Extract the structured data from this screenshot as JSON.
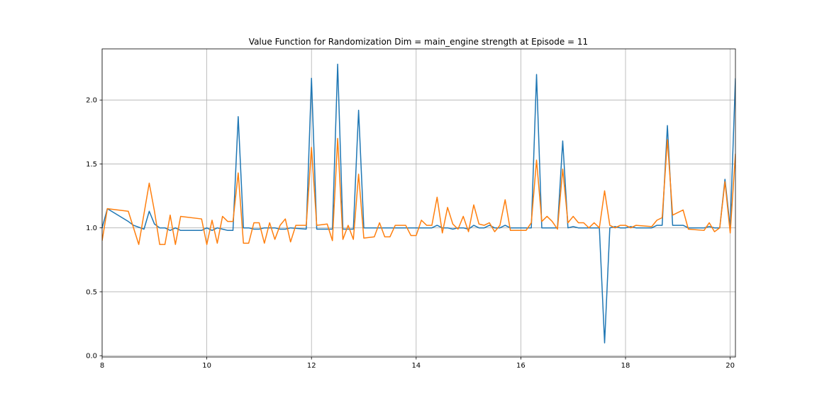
{
  "chart_data": {
    "type": "line",
    "title": "Value Function for Randomization Dim = main_engine strength at Episode = 11",
    "xlabel": "",
    "ylabel": "",
    "xlim": [
      8,
      20.1
    ],
    "ylim": [
      -0.01,
      2.4
    ],
    "x_ticks": [
      8,
      10,
      12,
      14,
      16,
      18,
      20
    ],
    "y_ticks": [
      0.0,
      0.5,
      1.0,
      1.5,
      2.0
    ],
    "x_tick_labels": [
      "8",
      "10",
      "12",
      "14",
      "16",
      "18",
      "20"
    ],
    "y_tick_labels": [
      "0.0",
      "0.5",
      "1.0",
      "1.5",
      "2.0"
    ],
    "grid": true,
    "legend": "none",
    "series": [
      {
        "color": "#1f77b4",
        "points": [
          [
            8.0,
            1.0
          ],
          [
            8.1,
            1.15
          ],
          [
            8.3,
            1.1
          ],
          [
            8.5,
            1.05
          ],
          [
            8.6,
            1.02
          ],
          [
            8.8,
            0.99
          ],
          [
            8.9,
            1.13
          ],
          [
            9.0,
            1.03
          ],
          [
            9.1,
            1.0
          ],
          [
            9.2,
            1.0
          ],
          [
            9.3,
            0.98
          ],
          [
            9.4,
            1.0
          ],
          [
            9.5,
            0.98
          ],
          [
            9.9,
            0.98
          ],
          [
            10.0,
            1.0
          ],
          [
            10.1,
            0.98
          ],
          [
            10.2,
            1.0
          ],
          [
            10.3,
            0.99
          ],
          [
            10.4,
            0.98
          ],
          [
            10.5,
            0.98
          ],
          [
            10.6,
            1.87
          ],
          [
            10.7,
            1.0
          ],
          [
            10.8,
            1.0
          ],
          [
            10.9,
            0.99
          ],
          [
            11.0,
            0.99
          ],
          [
            11.1,
            1.0
          ],
          [
            11.3,
            1.0
          ],
          [
            11.4,
            0.99
          ],
          [
            11.5,
            0.99
          ],
          [
            11.6,
            1.0
          ],
          [
            11.9,
            0.99
          ],
          [
            12.0,
            2.17
          ],
          [
            12.1,
            0.99
          ],
          [
            12.4,
            0.99
          ],
          [
            12.5,
            2.28
          ],
          [
            12.6,
            0.99
          ],
          [
            12.8,
            0.99
          ],
          [
            12.9,
            1.92
          ],
          [
            13.0,
            1.0
          ],
          [
            13.5,
            1.0
          ],
          [
            14.2,
            1.0
          ],
          [
            14.3,
            1.0
          ],
          [
            14.4,
            1.02
          ],
          [
            14.5,
            1.0
          ],
          [
            14.6,
            1.0
          ],
          [
            14.7,
            0.99
          ],
          [
            14.8,
            1.0
          ],
          [
            14.9,
            1.0
          ],
          [
            15.0,
            0.99
          ],
          [
            15.1,
            1.02
          ],
          [
            15.2,
            1.0
          ],
          [
            15.3,
            1.0
          ],
          [
            15.4,
            1.02
          ],
          [
            15.5,
            1.0
          ],
          [
            15.6,
            1.0
          ],
          [
            15.7,
            1.02
          ],
          [
            15.8,
            1.0
          ],
          [
            16.2,
            1.0
          ],
          [
            16.3,
            2.2
          ],
          [
            16.4,
            1.0
          ],
          [
            16.7,
            1.0
          ],
          [
            16.8,
            1.68
          ],
          [
            16.9,
            1.0
          ],
          [
            17.0,
            1.01
          ],
          [
            17.1,
            1.0
          ],
          [
            17.5,
            1.0
          ],
          [
            17.6,
            0.1
          ],
          [
            17.7,
            1.0
          ],
          [
            17.8,
            1.01
          ],
          [
            17.9,
            1.0
          ],
          [
            18.0,
            1.0
          ],
          [
            18.1,
            1.01
          ],
          [
            18.2,
            1.0
          ],
          [
            18.5,
            1.0
          ],
          [
            18.6,
            1.02
          ],
          [
            18.7,
            1.02
          ],
          [
            18.8,
            1.8
          ],
          [
            18.9,
            1.02
          ],
          [
            19.1,
            1.02
          ],
          [
            19.2,
            1.0
          ],
          [
            19.5,
            1.0
          ],
          [
            19.6,
            1.01
          ],
          [
            19.7,
            1.0
          ],
          [
            19.8,
            1.0
          ],
          [
            19.9,
            1.38
          ],
          [
            20.0,
            1.0
          ],
          [
            20.1,
            2.17
          ]
        ]
      },
      {
        "color": "#ff7f0e",
        "points": [
          [
            8.0,
            0.9
          ],
          [
            8.1,
            1.15
          ],
          [
            8.5,
            1.13
          ],
          [
            8.7,
            0.87
          ],
          [
            8.9,
            1.35
          ],
          [
            9.0,
            1.13
          ],
          [
            9.1,
            0.87
          ],
          [
            9.2,
            0.87
          ],
          [
            9.3,
            1.1
          ],
          [
            9.4,
            0.87
          ],
          [
            9.5,
            1.09
          ],
          [
            9.9,
            1.07
          ],
          [
            10.0,
            0.87
          ],
          [
            10.1,
            1.06
          ],
          [
            10.2,
            0.88
          ],
          [
            10.3,
            1.09
          ],
          [
            10.4,
            1.05
          ],
          [
            10.5,
            1.05
          ],
          [
            10.6,
            1.43
          ],
          [
            10.7,
            0.88
          ],
          [
            10.8,
            0.88
          ],
          [
            10.9,
            1.04
          ],
          [
            11.0,
            1.04
          ],
          [
            11.1,
            0.88
          ],
          [
            11.2,
            1.04
          ],
          [
            11.3,
            0.91
          ],
          [
            11.4,
            1.02
          ],
          [
            11.5,
            1.07
          ],
          [
            11.6,
            0.89
          ],
          [
            11.7,
            1.02
          ],
          [
            11.9,
            1.02
          ],
          [
            12.0,
            1.63
          ],
          [
            12.1,
            1.02
          ],
          [
            12.3,
            1.03
          ],
          [
            12.4,
            0.9
          ],
          [
            12.5,
            1.7
          ],
          [
            12.6,
            0.91
          ],
          [
            12.7,
            1.02
          ],
          [
            12.8,
            0.91
          ],
          [
            12.9,
            1.42
          ],
          [
            13.0,
            0.92
          ],
          [
            13.2,
            0.93
          ],
          [
            13.3,
            1.04
          ],
          [
            13.4,
            0.93
          ],
          [
            13.5,
            0.93
          ],
          [
            13.6,
            1.02
          ],
          [
            13.8,
            1.02
          ],
          [
            13.9,
            0.94
          ],
          [
            14.0,
            0.94
          ],
          [
            14.1,
            1.06
          ],
          [
            14.2,
            1.02
          ],
          [
            14.3,
            1.02
          ],
          [
            14.4,
            1.24
          ],
          [
            14.5,
            0.96
          ],
          [
            14.6,
            1.16
          ],
          [
            14.7,
            1.03
          ],
          [
            14.8,
            0.99
          ],
          [
            14.9,
            1.09
          ],
          [
            15.0,
            0.97
          ],
          [
            15.1,
            1.18
          ],
          [
            15.2,
            1.03
          ],
          [
            15.3,
            1.02
          ],
          [
            15.4,
            1.04
          ],
          [
            15.5,
            0.97
          ],
          [
            15.6,
            1.02
          ],
          [
            15.7,
            1.22
          ],
          [
            15.8,
            0.98
          ],
          [
            16.1,
            0.98
          ],
          [
            16.2,
            1.04
          ],
          [
            16.3,
            1.53
          ],
          [
            16.4,
            1.05
          ],
          [
            16.5,
            1.09
          ],
          [
            16.6,
            1.05
          ],
          [
            16.7,
            0.99
          ],
          [
            16.8,
            1.46
          ],
          [
            16.9,
            1.04
          ],
          [
            17.0,
            1.09
          ],
          [
            17.1,
            1.04
          ],
          [
            17.2,
            1.04
          ],
          [
            17.3,
            1.0
          ],
          [
            17.4,
            1.04
          ],
          [
            17.5,
            1.0
          ],
          [
            17.6,
            1.29
          ],
          [
            17.7,
            1.02
          ],
          [
            17.8,
            1.0
          ],
          [
            17.9,
            1.02
          ],
          [
            18.0,
            1.02
          ],
          [
            18.1,
            1.0
          ],
          [
            18.2,
            1.02
          ],
          [
            18.5,
            1.01
          ],
          [
            18.6,
            1.06
          ],
          [
            18.7,
            1.08
          ],
          [
            18.8,
            1.69
          ],
          [
            18.9,
            1.1
          ],
          [
            19.1,
            1.14
          ],
          [
            19.2,
            0.99
          ],
          [
            19.5,
            0.98
          ],
          [
            19.6,
            1.04
          ],
          [
            19.7,
            0.97
          ],
          [
            19.8,
            1.0
          ],
          [
            19.9,
            1.36
          ],
          [
            20.0,
            0.96
          ],
          [
            20.1,
            1.58
          ]
        ]
      }
    ]
  }
}
